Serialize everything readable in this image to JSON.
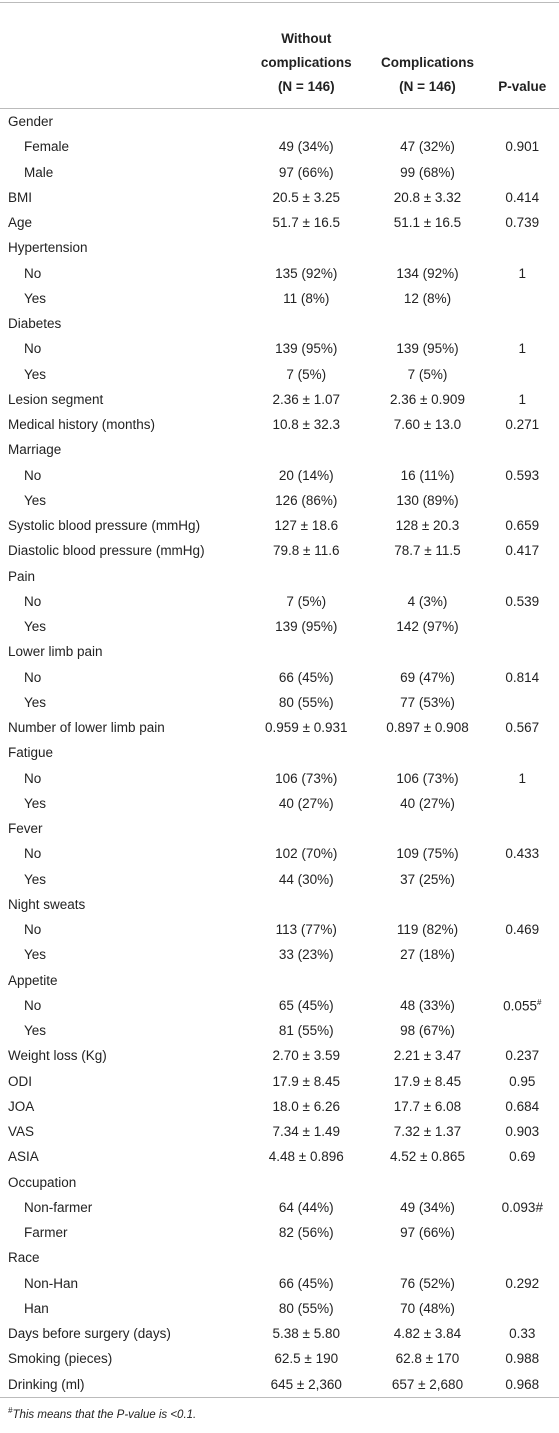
{
  "table": {
    "header": [
      [],
      [
        "Without",
        "complications",
        "(N = 146)"
      ],
      [
        "Complications",
        "(N = 146)"
      ],
      [
        "P-value"
      ]
    ],
    "rows": [
      {
        "label": "Gender",
        "items": [
          {
            "label": "Female",
            "values": [
              "49 (34%)",
              "47 (32%)",
              "0.901"
            ]
          },
          {
            "label": "Male",
            "values": [
              "97 (66%)",
              "99 (68%)"
            ]
          }
        ]
      },
      {
        "label": "BMI",
        "values": [
          "20.5 ± 3.25",
          "20.8 ± 3.32",
          "0.414"
        ]
      },
      {
        "label": "Age",
        "values": [
          "51.7 ± 16.5",
          "51.1 ± 16.5",
          "0.739"
        ]
      },
      {
        "label": "Hypertension",
        "items": [
          {
            "label": "No",
            "values": [
              "135 (92%)",
              "134 (92%)",
              "1"
            ]
          },
          {
            "label": "Yes",
            "values": [
              "11 (8%)",
              "12 (8%)"
            ]
          }
        ]
      },
      {
        "label": "Diabetes",
        "items": [
          {
            "label": "No",
            "values": [
              "139 (95%)",
              "139 (95%)",
              "1"
            ]
          },
          {
            "label": "Yes",
            "values": [
              "7 (5%)",
              "7 (5%)"
            ]
          }
        ]
      },
      {
        "label": "Lesion segment",
        "values": [
          "2.36 ± 1.07",
          "2.36 ± 0.909",
          "1"
        ]
      },
      {
        "label": "Medical history (months)",
        "values": [
          "10.8 ± 32.3",
          "7.60 ± 13.0",
          "0.271"
        ]
      },
      {
        "label": "Marriage",
        "items": [
          {
            "label": "No",
            "values": [
              "20 (14%)",
              "16 (11%)",
              "0.593"
            ]
          },
          {
            "label": "Yes",
            "values": [
              "126 (86%)",
              "130 (89%)"
            ]
          }
        ]
      },
      {
        "label": "Systolic blood pressure (mmHg)",
        "values": [
          "127 ± 18.6",
          "128 ± 20.3",
          "0.659"
        ]
      },
      {
        "label": "Diastolic blood pressure (mmHg)",
        "values": [
          "79.8 ± 11.6",
          "78.7 ± 11.5",
          "0.417"
        ]
      },
      {
        "label": "Pain",
        "items": [
          {
            "label": "No",
            "values": [
              "7 (5%)",
              "4 (3%)",
              "0.539"
            ]
          },
          {
            "label": "Yes",
            "values": [
              "139 (95%)",
              "142 (97%)"
            ]
          }
        ]
      },
      {
        "label": "Lower limb pain",
        "items": [
          {
            "label": "No",
            "values": [
              "66 (45%)",
              "69 (47%)",
              "0.814"
            ]
          },
          {
            "label": "Yes",
            "values": [
              "80 (55%)",
              "77 (53%)"
            ]
          }
        ]
      },
      {
        "label": "Number of lower limb pain",
        "values": [
          "0.959 ± 0.931",
          "0.897 ± 0.908",
          "0.567"
        ]
      },
      {
        "label": "Fatigue",
        "items": [
          {
            "label": "No",
            "values": [
              "106 (73%)",
              "106 (73%)",
              "1"
            ]
          },
          {
            "label": "Yes",
            "values": [
              "40 (27%)",
              "40 (27%)"
            ]
          }
        ]
      },
      {
        "label": "Fever",
        "items": [
          {
            "label": "No",
            "values": [
              "102 (70%)",
              "109 (75%)",
              "0.433"
            ]
          },
          {
            "label": "Yes",
            "values": [
              "44 (30%)",
              "37 (25%)"
            ]
          }
        ]
      },
      {
        "label": "Night sweats",
        "items": [
          {
            "label": "No",
            "values": [
              "113 (77%)",
              "119 (82%)",
              "0.469"
            ]
          },
          {
            "label": "Yes",
            "values": [
              "33 (23%)",
              "27 (18%)"
            ]
          }
        ]
      },
      {
        "label": "Appetite",
        "items": [
          {
            "label": "No",
            "values": [
              "65 (45%)",
              "48 (33%)",
              {
                "text": "0.055",
                "sup": "#"
              }
            ]
          },
          {
            "label": "Yes",
            "values": [
              "81 (55%)",
              "98 (67%)"
            ]
          }
        ]
      },
      {
        "label": "Weight loss (Kg)",
        "values": [
          "2.70 ± 3.59",
          "2.21 ± 3.47",
          "0.237"
        ]
      },
      {
        "label": "ODI",
        "values": [
          "17.9 ± 8.45",
          "17.9 ± 8.45",
          "0.95"
        ]
      },
      {
        "label": "JOA",
        "values": [
          "18.0 ± 6.26",
          "17.7 ± 6.08",
          "0.684"
        ]
      },
      {
        "label": "VAS",
        "values": [
          "7.34 ± 1.49",
          "7.32 ± 1.37",
          "0.903"
        ]
      },
      {
        "label": "ASIA",
        "values": [
          "4.48 ± 0.896",
          "4.52 ± 0.865",
          "0.69"
        ]
      },
      {
        "label": "Occupation",
        "items": [
          {
            "label": "Non-farmer",
            "values": [
              "64 (44%)",
              "49 (34%)",
              "0.093#"
            ]
          },
          {
            "label": "Farmer",
            "values": [
              "82 (56%)",
              "97 (66%)"
            ]
          }
        ]
      },
      {
        "label": "Race",
        "items": [
          {
            "label": "Non-Han",
            "values": [
              "66 (45%)",
              "76 (52%)",
              "0.292"
            ]
          },
          {
            "label": "Han",
            "values": [
              "80 (55%)",
              "70 (48%)"
            ]
          }
        ]
      },
      {
        "label": "Days before surgery (days)",
        "values": [
          "5.38 ± 5.80",
          "4.82 ± 3.84",
          "0.33"
        ]
      },
      {
        "label": "Smoking (pieces)",
        "values": [
          "62.5 ± 190",
          "62.8 ± 170",
          "0.988"
        ]
      },
      {
        "label": "Drinking (ml)",
        "values": [
          "645 ± 2,360",
          "657 ± 2,680",
          "0.968"
        ]
      }
    ],
    "footnote": {
      "mark": "#",
      "text": "This means that the P-value is <0.1."
    }
  }
}
